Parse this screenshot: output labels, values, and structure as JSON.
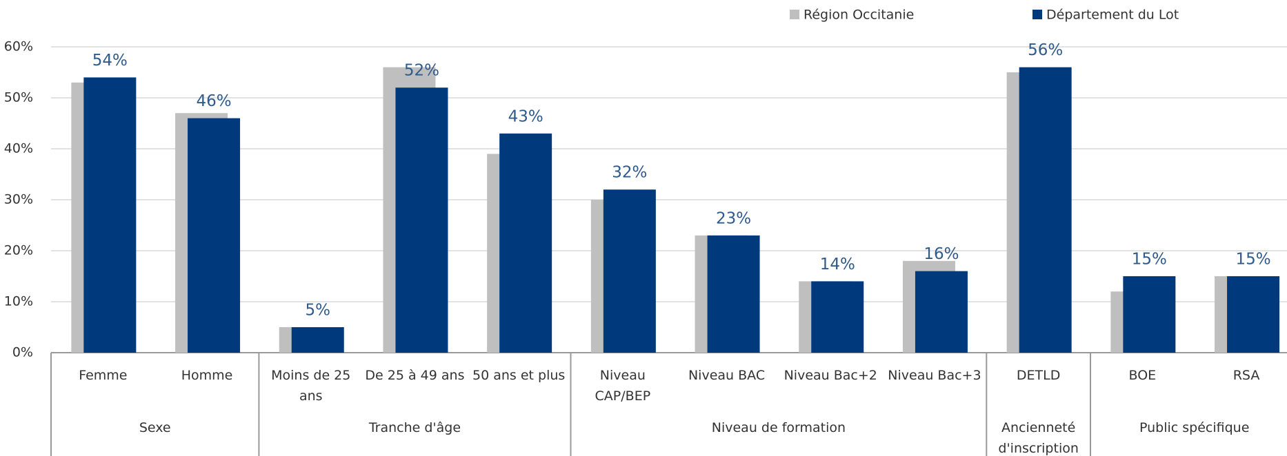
{
  "chart_data": {
    "type": "bar",
    "groups": [
      {
        "name": "Sexe",
        "categories": [
          "Femme",
          "Homme"
        ]
      },
      {
        "name": "Tranche d'âge",
        "categories": [
          "Moins de 25 ans",
          "De 25 à 49 ans",
          "50 ans et plus"
        ]
      },
      {
        "name": "Niveau de formation",
        "categories": [
          "Niveau CAP/BEP",
          "Niveau BAC",
          "Niveau Bac+2",
          "Niveau Bac+3"
        ]
      },
      {
        "name": "Ancienneté d'inscription",
        "categories": [
          "DETLD"
        ]
      },
      {
        "name": "Public spécifique",
        "categories": [
          "BOE",
          "RSA"
        ]
      }
    ],
    "series": [
      {
        "name": "Région Occitanie",
        "color": "#bfbfbf",
        "values": [
          53,
          47,
          5,
          56,
          39,
          30,
          23,
          14,
          18,
          55,
          12,
          15
        ]
      },
      {
        "name": "Département du Lot",
        "color": "#003a7d",
        "values": [
          54,
          46,
          5,
          52,
          43,
          32,
          23,
          14,
          16,
          56,
          15,
          15
        ],
        "value_labels": [
          "54%",
          "46%",
          "5%",
          "52%",
          "43%",
          "32%",
          "23%",
          "14%",
          "16%",
          "56%",
          "15%",
          "15%"
        ]
      }
    ],
    "ylim": [
      0,
      60
    ],
    "yticks": [
      {
        "value": 0,
        "label": "0%"
      },
      {
        "value": 10,
        "label": "10%"
      },
      {
        "value": 20,
        "label": "20%"
      },
      {
        "value": 30,
        "label": "30%"
      },
      {
        "value": 40,
        "label": "40%"
      },
      {
        "value": 50,
        "label": "50%"
      },
      {
        "value": 60,
        "label": "60%"
      }
    ],
    "grid": true
  }
}
